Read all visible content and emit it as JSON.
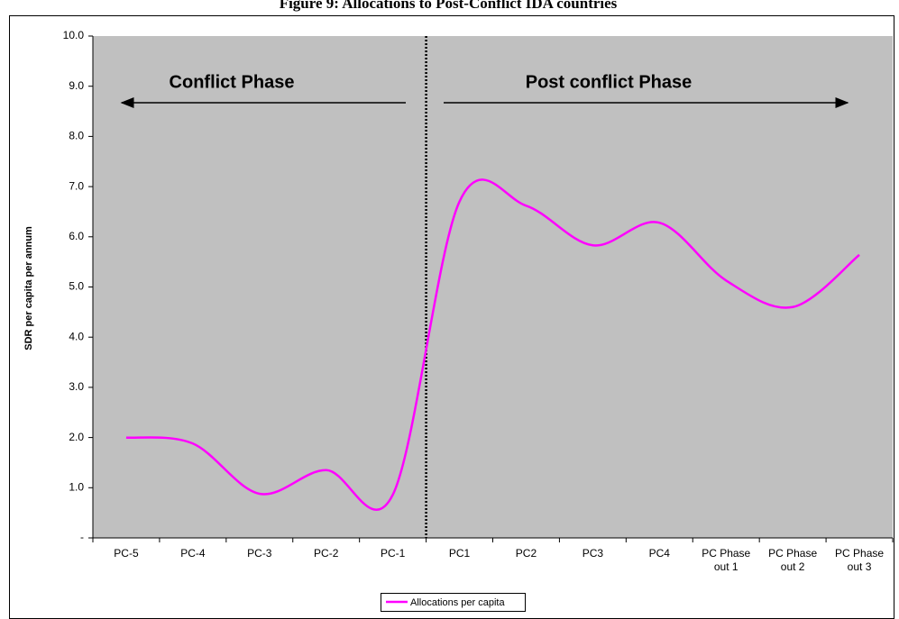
{
  "chart_data": {
    "type": "line",
    "title": "Figure 9: Allocations to Post-Conflict IDA countries",
    "y_label": "SDR per capita per annum",
    "annotations": [
      "Conflict Phase",
      "Post conflict Phase"
    ],
    "categories": [
      "PC-5",
      "PC-4",
      "PC-3",
      "PC-2",
      "PC-1",
      "PC1",
      "PC2",
      "PC3",
      "PC4",
      "PC Phase out 1",
      "PC Phase out 2",
      "PC Phase out 3"
    ],
    "series": [
      {
        "name": "Allocations per capita",
        "color": "#ff00ff",
        "values": [
          2.0,
          1.88,
          0.88,
          1.35,
          0.86,
          6.7,
          6.62,
          5.83,
          6.28,
          5.13,
          4.6,
          5.64
        ]
      }
    ],
    "ylim": [
      0,
      10
    ],
    "yticks": [
      {
        "value": 0,
        "label": "-"
      },
      {
        "value": 1,
        "label": "1.0"
      },
      {
        "value": 2,
        "label": "2.0"
      },
      {
        "value": 3,
        "label": "3.0"
      },
      {
        "value": 4,
        "label": "4.0"
      },
      {
        "value": 5,
        "label": "5.0"
      },
      {
        "value": 6,
        "label": "6.0"
      },
      {
        "value": 7,
        "label": "7.0"
      },
      {
        "value": 8,
        "label": "8.0"
      },
      {
        "value": 9,
        "label": "9.0"
      },
      {
        "value": 10,
        "label": "10.0"
      }
    ],
    "legend": "bottom",
    "background": "#c0c0c0"
  }
}
